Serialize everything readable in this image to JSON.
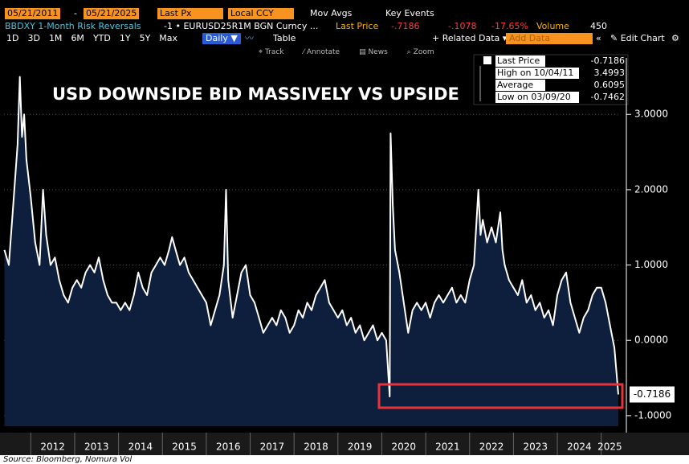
{
  "header": {
    "start_date": "05/21/2011",
    "sep": "-",
    "end_date": "05/21/2025",
    "field": "Last Px",
    "currency": "Local CCY",
    "mov_avgs": "Mov Avgs",
    "key_events": "Key Events"
  },
  "security": {
    "name": "BBDXY 1-Month Risk Reversals",
    "ticker": "-1 • EURUSD25R1M BGN Curncy ...",
    "last_price_label": "Last Price",
    "last_price": "-.7186",
    "change": "-.1078",
    "change_pct": "-17.65%",
    "volume_label": "Volume",
    "volume": "450"
  },
  "toolbar": {
    "periods": [
      "1D",
      "3D",
      "1M",
      "6M",
      "YTD",
      "1Y",
      "5Y",
      "Max"
    ],
    "frequency": "Daily ▼",
    "table": "Table",
    "related": "+ Related Data ▾",
    "add_data": "Add Data",
    "edit_chart": "Edit Chart"
  },
  "tools": [
    "Track",
    "Annotate",
    "News",
    "Zoom"
  ],
  "source": "Source: Bloomberg, Nomura Vol",
  "chart_data": {
    "type": "area",
    "title": "USD DOWNSIDE BID MASSIVELY VS UPSIDE",
    "x": [
      2011.4,
      2011.5,
      2011.6,
      2011.7,
      2011.75,
      2011.8,
      2011.85,
      2011.9,
      2012.0,
      2012.1,
      2012.2,
      2012.28,
      2012.35,
      2012.45,
      2012.55,
      2012.65,
      2012.75,
      2012.85,
      2012.95,
      2013.05,
      2013.15,
      2013.25,
      2013.35,
      2013.45,
      2013.55,
      2013.65,
      2013.75,
      2013.85,
      2013.95,
      2014.05,
      2014.15,
      2014.25,
      2014.35,
      2014.45,
      2014.55,
      2014.65,
      2014.75,
      2014.85,
      2014.95,
      2015.05,
      2015.15,
      2015.22,
      2015.3,
      2015.4,
      2015.5,
      2015.6,
      2015.7,
      2015.8,
      2015.9,
      2016.0,
      2016.1,
      2016.2,
      2016.3,
      2016.4,
      2016.45,
      2016.5,
      2016.6,
      2016.7,
      2016.8,
      2016.9,
      2017.0,
      2017.1,
      2017.2,
      2017.3,
      2017.4,
      2017.5,
      2017.6,
      2017.7,
      2017.8,
      2017.9,
      2018.0,
      2018.1,
      2018.2,
      2018.3,
      2018.4,
      2018.5,
      2018.6,
      2018.7,
      2018.8,
      2018.9,
      2019.0,
      2019.1,
      2019.2,
      2019.3,
      2019.4,
      2019.5,
      2019.6,
      2019.7,
      2019.8,
      2019.9,
      2020.0,
      2020.1,
      2020.18,
      2020.2,
      2020.25,
      2020.3,
      2020.4,
      2020.5,
      2020.6,
      2020.7,
      2020.8,
      2020.9,
      2021.0,
      2021.1,
      2021.2,
      2021.3,
      2021.4,
      2021.5,
      2021.6,
      2021.7,
      2021.8,
      2021.9,
      2022.0,
      2022.1,
      2022.2,
      2022.25,
      2022.3,
      2022.4,
      2022.5,
      2022.6,
      2022.7,
      2022.75,
      2022.8,
      2022.9,
      2023.0,
      2023.1,
      2023.2,
      2023.3,
      2023.4,
      2023.5,
      2023.6,
      2023.7,
      2023.8,
      2023.9,
      2024.0,
      2024.1,
      2024.2,
      2024.3,
      2024.4,
      2024.5,
      2024.6,
      2024.7,
      2024.8,
      2024.9,
      2025.0,
      2025.1,
      2025.2,
      2025.3,
      2025.39
    ],
    "values": [
      1.2,
      1.0,
      1.8,
      2.6,
      3.4993,
      2.7,
      3.0,
      2.4,
      1.9,
      1.3,
      1.0,
      2.0,
      1.4,
      1.0,
      1.1,
      0.8,
      0.6,
      0.5,
      0.7,
      0.8,
      0.7,
      0.9,
      1.0,
      0.9,
      1.1,
      0.8,
      0.6,
      0.5,
      0.5,
      0.4,
      0.5,
      0.4,
      0.6,
      0.9,
      0.7,
      0.6,
      0.9,
      1.0,
      1.1,
      1.0,
      1.2,
      1.37,
      1.2,
      1.0,
      1.1,
      0.9,
      0.8,
      0.7,
      0.6,
      0.5,
      0.2,
      0.4,
      0.6,
      1.0,
      2.0,
      0.8,
      0.3,
      0.6,
      0.9,
      1.0,
      0.6,
      0.5,
      0.3,
      0.1,
      0.2,
      0.3,
      0.2,
      0.4,
      0.3,
      0.1,
      0.2,
      0.4,
      0.3,
      0.5,
      0.4,
      0.6,
      0.7,
      0.8,
      0.5,
      0.4,
      0.3,
      0.4,
      0.2,
      0.3,
      0.1,
      0.2,
      0.0,
      0.1,
      0.2,
      0.0,
      0.1,
      0.0,
      -0.7462,
      2.75,
      1.8,
      1.2,
      0.9,
      0.5,
      0.1,
      0.4,
      0.5,
      0.4,
      0.5,
      0.3,
      0.5,
      0.6,
      0.5,
      0.6,
      0.7,
      0.5,
      0.6,
      0.5,
      0.8,
      1.0,
      2.0,
      1.4,
      1.6,
      1.3,
      1.5,
      1.3,
      1.7,
      1.2,
      1.0,
      0.8,
      0.7,
      0.6,
      0.8,
      0.5,
      0.6,
      0.4,
      0.5,
      0.3,
      0.4,
      0.2,
      0.6,
      0.8,
      0.9,
      0.5,
      0.3,
      0.1,
      0.3,
      0.4,
      0.6,
      0.7,
      0.7,
      0.5,
      0.2,
      -0.1,
      -0.7186
    ],
    "color": "#ffffff",
    "fill": "#0d1f3c",
    "last_label": "-0.7186",
    "xlim": [
      2011.39,
      2025.39
    ],
    "xticks": [
      2012,
      2013,
      2014,
      2015,
      2016,
      2017,
      2018,
      2019,
      2020,
      2021,
      2022,
      2023,
      2024,
      2025
    ],
    "ylim": [
      -1.14,
      3.75
    ],
    "yticks": [
      {
        "value": -1,
        "label": "-1.0000"
      },
      {
        "value": 0,
        "label": "0.0000"
      },
      {
        "value": 1,
        "label": "1.0000"
      },
      {
        "value": 2,
        "label": "2.0000"
      },
      {
        "value": 3,
        "label": "3.0000"
      }
    ],
    "grid": true,
    "legend": [
      {
        "label": "Last Price",
        "value": "-0.7186"
      },
      {
        "label": "High on 10/04/11",
        "value": "3.4993"
      },
      {
        "label": "Average",
        "value": "0.6095"
      },
      {
        "label": "Low on 03/09/20",
        "value": "-0.7462"
      }
    ]
  }
}
